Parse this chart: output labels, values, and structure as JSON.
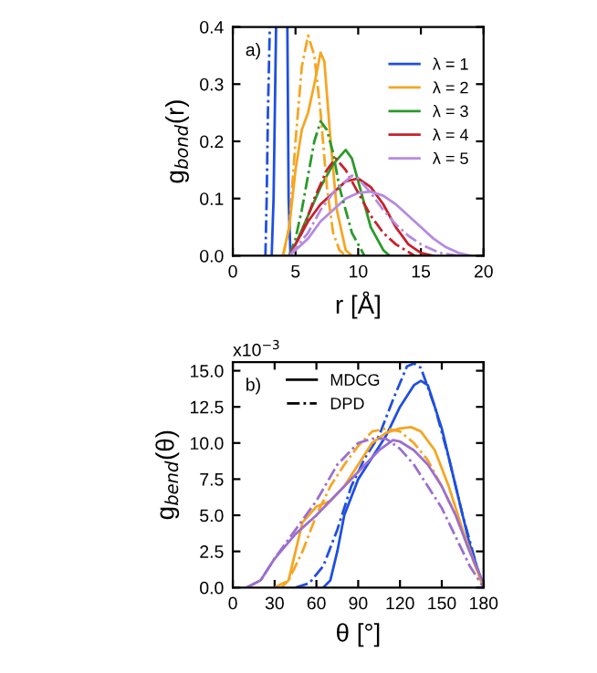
{
  "chart_data": [
    {
      "type": "line",
      "xlabel": "r [Å]",
      "ylabel": "g$_{bond}$(r)",
      "annotations": [
        "a)"
      ],
      "legend": "top right",
      "grid": false,
      "xlim": [
        0,
        20
      ],
      "ylim": [
        0,
        0.4
      ],
      "xticks": [
        0,
        5,
        10,
        15,
        20
      ],
      "yticks": [
        {
          "value": 0,
          "label": "0.0"
        },
        0.1,
        0.2,
        0.3,
        0.4
      ],
      "series": [
        {
          "name": "λ = 1",
          "color": "#1f4fe0",
          "line_style": "solid",
          "x": [
            3.1,
            3.25,
            3.35,
            3.45,
            4.0,
            4.35,
            4.45,
            4.6
          ],
          "values": [
            0,
            0.1,
            0.25,
            0.4,
            null,
            0.4,
            0.1,
            0
          ]
        },
        {
          "name": "λ = 2",
          "color": "#f5a623",
          "line_style": "solid",
          "x": [
            4,
            4.5,
            5,
            5.5,
            6,
            6.5,
            7,
            7.3,
            7.8,
            8.3,
            9,
            9.5
          ],
          "values": [
            0,
            0.05,
            0.15,
            0.22,
            0.25,
            0.3,
            0.355,
            0.34,
            0.2,
            0.08,
            0.01,
            0
          ]
        },
        {
          "name": "λ = 3",
          "color": "#2a9a2a",
          "line_style": "solid",
          "x": [
            4.5,
            5,
            6,
            7,
            8,
            9,
            9.5,
            10,
            11,
            12,
            12.5
          ],
          "values": [
            0,
            0.02,
            0.07,
            0.12,
            0.16,
            0.185,
            0.17,
            0.13,
            0.05,
            0.01,
            0
          ]
        },
        {
          "name": "λ = 4",
          "color": "#c8202a",
          "line_style": "solid",
          "x": [
            4.5,
            5,
            6,
            7,
            8,
            9,
            10,
            11,
            12,
            13,
            14,
            15,
            16
          ],
          "values": [
            0,
            0.02,
            0.06,
            0.09,
            0.11,
            0.13,
            0.135,
            0.12,
            0.09,
            0.05,
            0.02,
            0.005,
            0
          ]
        },
        {
          "name": "λ = 5",
          "color": "#b58be0",
          "line_style": "solid",
          "x": [
            4.5,
            6,
            7,
            8,
            9,
            10,
            11,
            12,
            13,
            14,
            15,
            16,
            17,
            18,
            19
          ],
          "values": [
            0,
            0.03,
            0.06,
            0.08,
            0.1,
            0.11,
            0.112,
            0.105,
            0.09,
            0.07,
            0.05,
            0.03,
            0.015,
            0.005,
            0
          ]
        },
        {
          "color": "#1f4fe0",
          "line_style": "dashed",
          "x": [
            2.6,
            2.7,
            2.8,
            2.95
          ],
          "values": [
            0,
            0.1,
            0.25,
            0.4
          ]
        },
        {
          "color": "#f5a623",
          "line_style": "dashed",
          "x": [
            4,
            4.5,
            5,
            5.5,
            6,
            6.5,
            7,
            7.5,
            8,
            8.5,
            9
          ],
          "values": [
            0,
            0.05,
            0.2,
            0.33,
            0.385,
            0.35,
            0.25,
            0.12,
            0.04,
            0.01,
            0
          ]
        },
        {
          "color": "#2a9a2a",
          "line_style": "dashed",
          "x": [
            4.5,
            5,
            5.5,
            6,
            6.5,
            7,
            7.5,
            8,
            8.5,
            9.5,
            10.5
          ],
          "values": [
            0,
            0.03,
            0.08,
            0.14,
            0.2,
            0.235,
            0.22,
            0.18,
            0.12,
            0.04,
            0
          ]
        },
        {
          "color": "#c8202a",
          "line_style": "dashed",
          "x": [
            4.5,
            5.5,
            6.5,
            7.5,
            8.2,
            9,
            10,
            11,
            12,
            13,
            14.5
          ],
          "values": [
            0,
            0.04,
            0.1,
            0.15,
            0.17,
            0.15,
            0.11,
            0.07,
            0.04,
            0.02,
            0
          ]
        },
        {
          "color": "#b58be0",
          "line_style": "dashed",
          "x": [
            4.5,
            6,
            7,
            8,
            9,
            9.5,
            10,
            11,
            12,
            13,
            14,
            15,
            16.5,
            18
          ],
          "values": [
            0,
            0.04,
            0.08,
            0.11,
            0.13,
            0.14,
            0.135,
            0.11,
            0.08,
            0.055,
            0.035,
            0.02,
            0.005,
            0
          ]
        }
      ]
    },
    {
      "type": "line",
      "xlabel": "θ [°]",
      "ylabel": "g$_{bend}$(θ)",
      "annotations": [
        "b)",
        "x10$^{−3}$"
      ],
      "legend": "top left",
      "grid": false,
      "xlim": [
        0,
        180
      ],
      "ylim": [
        0,
        15.6
      ],
      "xticks": [
        0,
        30,
        60,
        90,
        120,
        150,
        180
      ],
      "yticks": [
        {
          "value": 0,
          "label": "0.0"
        },
        2.5,
        {
          "value": 5,
          "label": "5.0"
        },
        7.5,
        {
          "value": 10,
          "label": "10.0"
        },
        12.5,
        {
          "value": 15,
          "label": "15.0"
        }
      ],
      "series": [
        {
          "name": "MDCG",
          "color": "#000000",
          "line_style": "solid"
        },
        {
          "name": "DPD",
          "color": "#000000",
          "line_style": "dashed"
        },
        {
          "color": "#1f4fe0",
          "line_style": "solid",
          "x": [
            65,
            70,
            75,
            80,
            90,
            100,
            110,
            120,
            130,
            135,
            140,
            150,
            160,
            170,
            180
          ],
          "values": [
            0,
            0.5,
            2.5,
            5,
            7.5,
            9,
            10.5,
            12.5,
            14,
            14.3,
            14,
            11,
            7,
            3,
            0
          ]
        },
        {
          "color": "#1f4fe0",
          "line_style": "dashed",
          "x": [
            45,
            55,
            65,
            75,
            85,
            95,
            105,
            115,
            125,
            130,
            135,
            145,
            155,
            165,
            175,
            180
          ],
          "values": [
            0,
            0.3,
            1.5,
            4,
            7,
            9,
            10.5,
            13,
            15.3,
            15.5,
            15.2,
            12.5,
            9,
            5,
            1.5,
            0
          ]
        },
        {
          "color": "#f5a623",
          "line_style": "solid",
          "x": [
            35,
            40,
            45,
            50,
            60,
            70,
            80,
            90,
            100,
            110,
            120,
            128,
            135,
            145,
            155,
            165,
            175,
            180
          ],
          "values": [
            0,
            0.5,
            2.5,
            4.5,
            5.6,
            6,
            7,
            8.5,
            10,
            10.7,
            11,
            11.1,
            10.8,
            9.5,
            7,
            4,
            1.3,
            0
          ]
        },
        {
          "color": "#f5a623",
          "line_style": "dashed",
          "x": [
            30,
            40,
            50,
            60,
            70,
            80,
            90,
            100,
            110,
            120,
            130,
            140,
            150,
            160,
            170,
            180
          ],
          "values": [
            0,
            0.5,
            2.5,
            5,
            7,
            8.5,
            9.8,
            10.8,
            11,
            10.8,
            10,
            8.8,
            7,
            5,
            2.5,
            0
          ]
        },
        {
          "color": "#9b6fd0",
          "line_style": "solid",
          "x": [
            10,
            20,
            30,
            45,
            60,
            75,
            90,
            105,
            115,
            120,
            130,
            140,
            150,
            160,
            170,
            180
          ],
          "values": [
            0,
            0.5,
            2,
            3.7,
            5,
            6.5,
            8,
            9.5,
            10.2,
            10.1,
            9.5,
            8.5,
            7,
            5,
            2.5,
            0.3
          ]
        },
        {
          "color": "#9b6fd0",
          "line_style": "dashed",
          "x": [
            10,
            20,
            30,
            45,
            60,
            75,
            90,
            100,
            110,
            120,
            130,
            140,
            150,
            160,
            170,
            180
          ],
          "values": [
            0,
            0.5,
            2,
            4,
            6,
            8.5,
            10,
            10.3,
            10.3,
            9.6,
            8.5,
            7,
            5.5,
            3.5,
            1.5,
            0
          ]
        }
      ]
    }
  ]
}
